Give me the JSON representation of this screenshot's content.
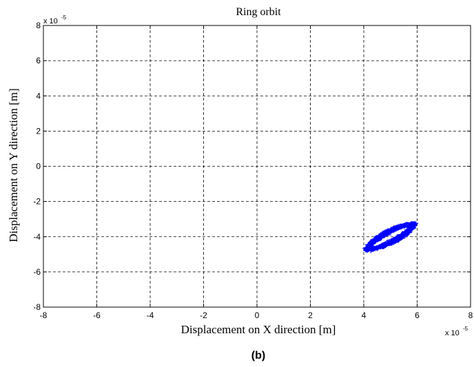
{
  "chart_data": {
    "type": "scatter",
    "title": "Ring orbit",
    "xlabel": "Displacement on X direction [m]",
    "ylabel": "Displacement on Y direction [m]",
    "x_multiplier_label": "x 10",
    "x_multiplier_exp": "-5",
    "y_multiplier_label": "x 10",
    "y_multiplier_exp": "-5",
    "xlim": [
      -8,
      8
    ],
    "ylim": [
      -8,
      8
    ],
    "xticks": [
      -8,
      -6,
      -4,
      -2,
      0,
      2,
      4,
      6,
      8
    ],
    "yticks": [
      -8,
      -6,
      -4,
      -2,
      0,
      2,
      4,
      6,
      8
    ],
    "xtick_labels": [
      "-8",
      "-6",
      "-4",
      "-2",
      "0",
      "2",
      "4",
      "6",
      "8"
    ],
    "ytick_labels": [
      "-8",
      "-6",
      "-4",
      "-2",
      "0",
      "2",
      "4",
      "6",
      "8"
    ],
    "grid": true,
    "grid_style": "dashed",
    "series": [
      {
        "color": "#0000ff",
        "orbit_center": [
          5.0,
          -4.0
        ],
        "orbit_extent_x": [
          4.15,
          5.8
        ],
        "orbit_extent_y": [
          -5.1,
          -2.8
        ],
        "orbit_slope_deg": 40
      }
    ]
  },
  "caption": "(b)"
}
